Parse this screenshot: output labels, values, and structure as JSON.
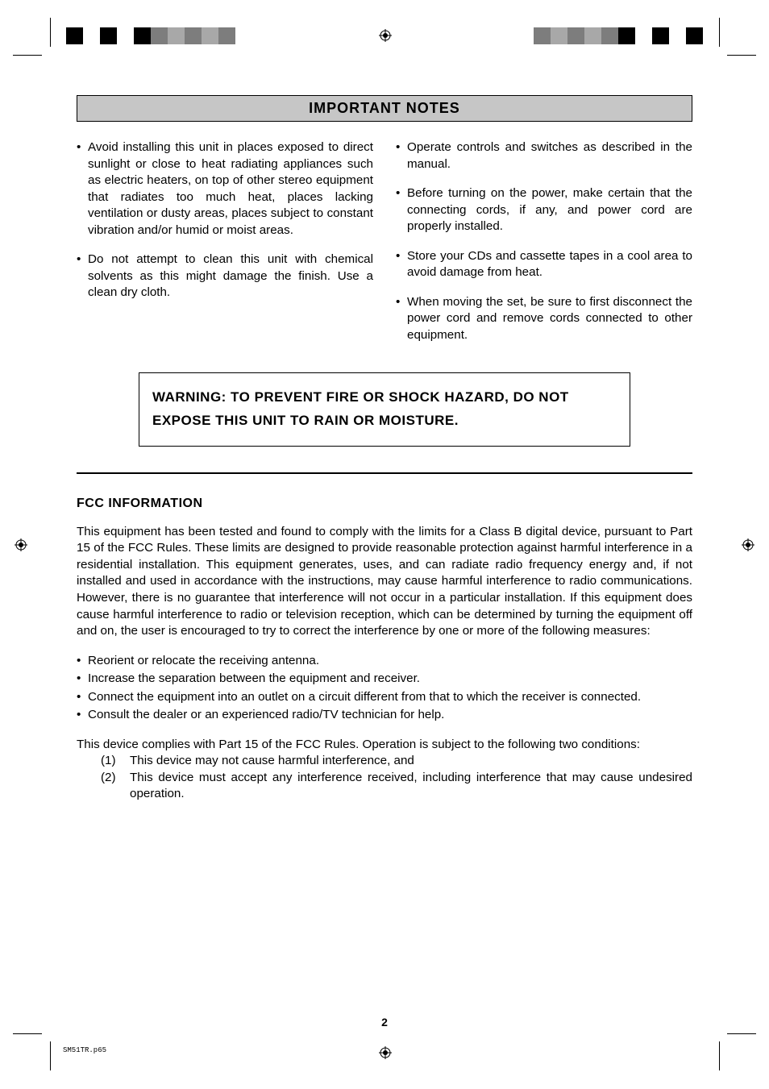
{
  "printer_marks": {
    "colorbar_left": [
      "#000000",
      "#ffffff",
      "#000000",
      "#ffffff",
      "#000000",
      "#7d7d7d",
      "#a8a8a8",
      "#7d7d7d",
      "#a8a8a8",
      "#7d7d7d"
    ],
    "colorbar_right": [
      "#7d7d7d",
      "#a8a8a8",
      "#7d7d7d",
      "#a8a8a8",
      "#7d7d7d",
      "#000000",
      "#ffffff",
      "#000000",
      "#ffffff",
      "#000000"
    ]
  },
  "header": {
    "title": "IMPORTANT NOTES"
  },
  "notes": {
    "left": [
      "Avoid installing this unit in places exposed to direct sunlight or close to heat radiating appliances such as electric heaters, on top of other stereo equipment that radiates too much heat, places lacking ventilation or dusty areas, places subject to constant vibration and/or humid or moist areas.",
      "Do not attempt to clean this unit  with chemical solvents as this might damage the finish. Use a clean dry cloth."
    ],
    "right": [
      "Operate controls and switches as described in the manual.",
      "Before turning on the power, make certain that the connecting cords, if any, and power cord are properly installed.",
      "Store your CDs and cassette tapes in a cool area to avoid damage from heat.",
      "When moving the set, be sure to first disconnect the power cord and remove cords connected to other equipment."
    ]
  },
  "warning": "WARNING: TO PREVENT FIRE OR SHOCK HAZARD, DO NOT EXPOSE THIS UNIT TO RAIN OR MOISTURE.",
  "fcc": {
    "title": "FCC INFORMATION",
    "body": "This equipment has been tested and found to comply with the limits for a Class B digital device, pursuant to Part 15 of the FCC Rules. These limits are designed to provide reasonable protection against harmful interference in a residential installation. This equipment generates, uses, and can radiate radio frequency energy and, if not installed and used in accordance with the instructions, may cause harmful interference to radio communications. However, there is no guarantee that interference will not occur in a particular installation. If this equipment does cause harmful interference to radio or television reception, which can be determined by turning the equipment off and on, the user is encouraged to try to correct the interference by one or more of the following measures:",
    "measures": [
      "Reorient or relocate the receiving antenna.",
      "Increase the separation between the equipment and receiver.",
      "Connect the equipment into an outlet on a circuit different from that to which the receiver is connected.",
      "Consult the dealer or an experienced radio/TV technician for help."
    ],
    "conditions_intro": "This device complies with Part 15 of the FCC Rules. Operation is subject to the following two conditions:",
    "conditions": [
      "This device may not cause harmful interference, and",
      "This device must accept any interference received, including interference that may cause undesired operation."
    ]
  },
  "page_number": "2",
  "footer_file": "SM51TR.p65"
}
